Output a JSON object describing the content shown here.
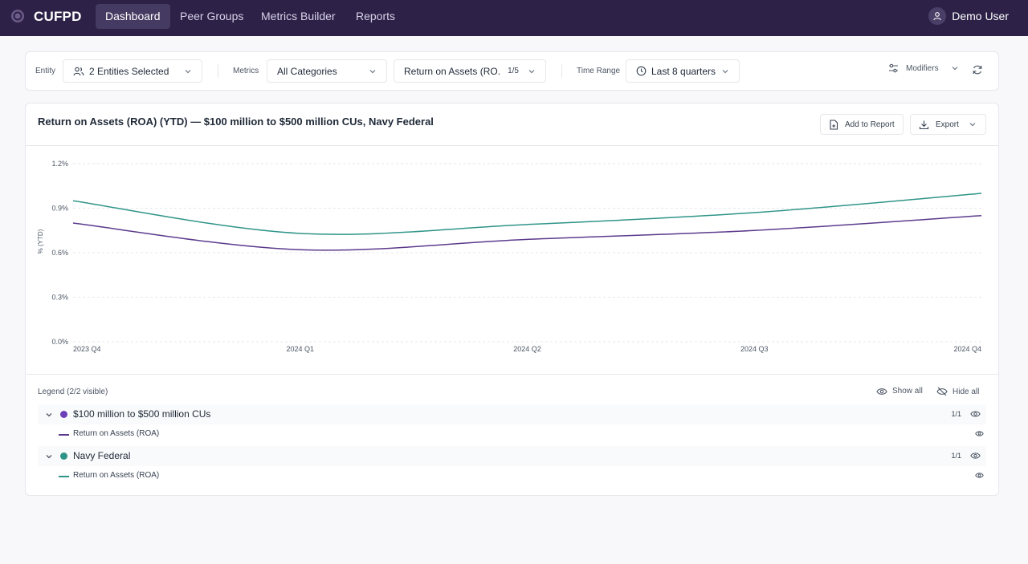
{
  "nav": {
    "brand": "CUFPD",
    "items": [
      {
        "label": "Dashboard",
        "active": true
      },
      {
        "label": "Peer Groups",
        "active": false
      },
      {
        "label": "Metrics Builder",
        "active": false
      },
      {
        "label": "Reports",
        "active": false
      }
    ],
    "user": "Demo User"
  },
  "filters": {
    "entity_label": "Entity",
    "entity_value": "2 Entities Selected",
    "metrics_label": "Metrics",
    "category_value": "All Categories",
    "metric_value": "Return on Assets (RO...",
    "metric_count": "1/5",
    "time_label": "Time Range",
    "time_value": "Last 8 quarters",
    "modifiers_label": "Modifiers"
  },
  "card": {
    "title": "Return on Assets (ROA) (YTD) — $100 million to $500 million CUs, Navy Federal",
    "add_report": "Add to Report",
    "export": "Export"
  },
  "chart_data": {
    "type": "line",
    "ylabel": "% (YTD)",
    "ylim": [
      0,
      1.2
    ],
    "yticks": [
      "1.2%",
      "0.9%",
      "0.6%",
      "0.3%",
      "0.0%"
    ],
    "x": [
      "2023 Q4",
      "2024 Q1",
      "2024 Q2",
      "2024 Q3",
      "2024 Q4"
    ],
    "series": [
      {
        "name": "$100 million to $500 million CUs",
        "color": "#5b3a8c",
        "values": [
          0.8,
          0.62,
          0.69,
          0.75,
          0.85
        ]
      },
      {
        "name": "Navy Federal",
        "color": "#2f9488",
        "values": [
          0.95,
          0.73,
          0.79,
          0.87,
          1.0
        ]
      }
    ],
    "grid": true
  },
  "legend": {
    "title": "Legend (2/2 visible)",
    "show_all": "Show all",
    "hide_all": "Hide all",
    "groups": [
      {
        "name": "$100 million to $500 million CUs",
        "color": "#6b3fb8",
        "line_color": "#5b3a8c",
        "count": "1/1",
        "metric": "Return on Assets (ROA)"
      },
      {
        "name": "Navy Federal",
        "color": "#2f9488",
        "line_color": "#2f9488",
        "count": "1/1",
        "metric": "Return on Assets (ROA)"
      }
    ]
  }
}
